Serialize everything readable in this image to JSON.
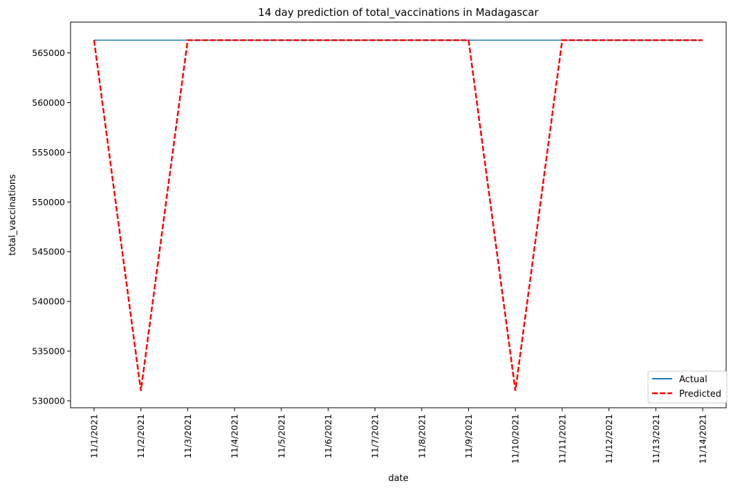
{
  "chart_data": {
    "type": "line",
    "title": "14 day prediction of total_vaccinations in Madagascar",
    "xlabel": "date",
    "ylabel": "total_vaccinations",
    "categories": [
      "11/1/2021",
      "11/2/2021",
      "11/3/2021",
      "11/4/2021",
      "11/5/2021",
      "11/6/2021",
      "11/7/2021",
      "11/8/2021",
      "11/9/2021",
      "11/10/2021",
      "11/11/2021",
      "11/12/2021",
      "11/13/2021",
      "11/14/2021"
    ],
    "yticks": [
      530000,
      535000,
      540000,
      545000,
      550000,
      555000,
      560000,
      565000
    ],
    "ylim": [
      529300,
      568100
    ],
    "grid": false,
    "legend_position": "bottom-right",
    "series": [
      {
        "name": "Actual",
        "color": "#1f77b4",
        "style": "solid",
        "values": [
          566284,
          566284,
          566284,
          566284,
          566284,
          566284,
          566284,
          566284,
          566284,
          566284,
          566284,
          566284,
          566284,
          566284
        ]
      },
      {
        "name": "Predicted",
        "color": "#ff0000",
        "style": "dashed",
        "values": [
          566284,
          531000,
          566284,
          566284,
          566284,
          566284,
          566284,
          566284,
          566284,
          531000,
          566284,
          566284,
          566284,
          566284
        ]
      }
    ]
  }
}
